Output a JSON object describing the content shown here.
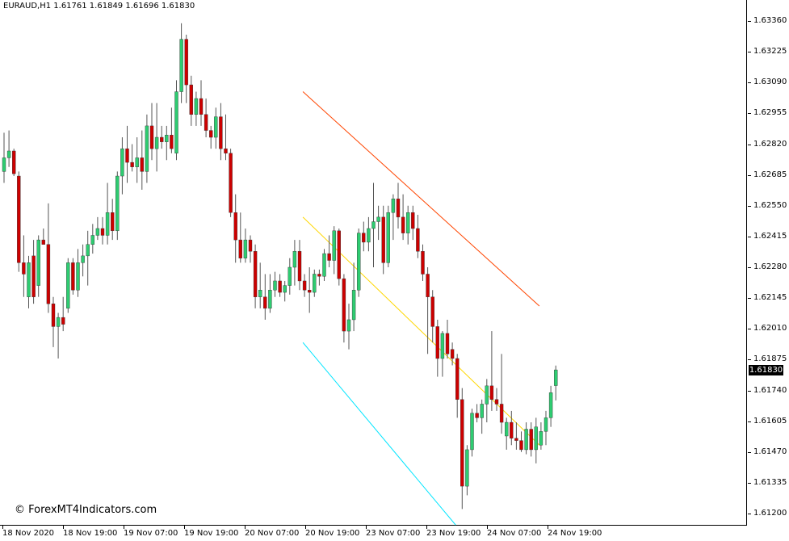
{
  "window": {
    "symbol_info": "EURAUD,H1  1.61761 1.61849 1.61696 1.61830",
    "current_price": "1.61830",
    "watermark": "© ForexMT4Indicators.com"
  },
  "price_axis": {
    "labels": [
      "1.63360",
      "1.63225",
      "1.63090",
      "1.62955",
      "1.62820",
      "1.62685",
      "1.62550",
      "1.62415",
      "1.62280",
      "1.62145",
      "1.62010",
      "1.61875",
      "1.61740",
      "1.61605",
      "1.61470",
      "1.61335",
      "1.61200"
    ]
  },
  "time_axis": {
    "labels": [
      "18 Nov 2020",
      "18 Nov 19:00",
      "19 Nov 07:00",
      "19 Nov 19:00",
      "20 Nov 07:00",
      "20 Nov 19:00",
      "23 Nov 07:00",
      "23 Nov 19:00",
      "24 Nov 07:00",
      "24 Nov 19:00"
    ]
  },
  "colors": {
    "bull": "#2ecc71",
    "bear": "#cc0000",
    "wick": "#555555",
    "upper_channel": "#ff4500",
    "middle_channel": "#ffd700",
    "lower_channel": "#00e5ff"
  },
  "chart_data": {
    "type": "candlestick",
    "symbol": "EURAUD",
    "timeframe": "H1",
    "ohlc_header": {
      "open": 1.61761,
      "high": 1.61849,
      "low": 1.61696,
      "close": 1.6183
    },
    "ylim": [
      1.612,
      1.6336
    ],
    "candles": [
      {
        "o": 1.627,
        "h": 1.6287,
        "l": 1.6265,
        "c": 1.6276
      },
      {
        "o": 1.6276,
        "h": 1.6288,
        "l": 1.6272,
        "c": 1.6279
      },
      {
        "o": 1.6279,
        "h": 1.628,
        "l": 1.6268,
        "c": 1.6269
      },
      {
        "o": 1.6268,
        "h": 1.627,
        "l": 1.6226,
        "c": 1.623
      },
      {
        "o": 1.623,
        "h": 1.6242,
        "l": 1.6215,
        "c": 1.6225
      },
      {
        "o": 1.6215,
        "h": 1.6233,
        "l": 1.621,
        "c": 1.623
      },
      {
        "o": 1.6233,
        "h": 1.624,
        "l": 1.6212,
        "c": 1.6215
      },
      {
        "o": 1.622,
        "h": 1.6242,
        "l": 1.6215,
        "c": 1.624
      },
      {
        "o": 1.624,
        "h": 1.6245,
        "l": 1.6239,
        "c": 1.6238
      },
      {
        "o": 1.6238,
        "h": 1.6256,
        "l": 1.6208,
        "c": 1.6212
      },
      {
        "o": 1.6212,
        "h": 1.6215,
        "l": 1.6193,
        "c": 1.6202
      },
      {
        "o": 1.6202,
        "h": 1.6208,
        "l": 1.6188,
        "c": 1.6206
      },
      {
        "o": 1.6206,
        "h": 1.6215,
        "l": 1.62,
        "c": 1.6203
      },
      {
        "o": 1.621,
        "h": 1.6232,
        "l": 1.6208,
        "c": 1.623
      },
      {
        "o": 1.623,
        "h": 1.6232,
        "l": 1.6216,
        "c": 1.6218
      },
      {
        "o": 1.6218,
        "h": 1.6236,
        "l": 1.6215,
        "c": 1.623
      },
      {
        "o": 1.623,
        "h": 1.6238,
        "l": 1.6224,
        "c": 1.6233
      },
      {
        "o": 1.6233,
        "h": 1.6244,
        "l": 1.622,
        "c": 1.6238
      },
      {
        "o": 1.6238,
        "h": 1.6247,
        "l": 1.6234,
        "c": 1.6242
      },
      {
        "o": 1.6242,
        "h": 1.625,
        "l": 1.624,
        "c": 1.6245
      },
      {
        "o": 1.6245,
        "h": 1.625,
        "l": 1.6238,
        "c": 1.6242
      },
      {
        "o": 1.6242,
        "h": 1.6265,
        "l": 1.6238,
        "c": 1.6252
      },
      {
        "o": 1.6252,
        "h": 1.6258,
        "l": 1.624,
        "c": 1.6244
      },
      {
        "o": 1.6244,
        "h": 1.627,
        "l": 1.624,
        "c": 1.6268
      },
      {
        "o": 1.6268,
        "h": 1.6285,
        "l": 1.626,
        "c": 1.628
      },
      {
        "o": 1.628,
        "h": 1.629,
        "l": 1.6265,
        "c": 1.6274
      },
      {
        "o": 1.6274,
        "h": 1.6282,
        "l": 1.627,
        "c": 1.6272
      },
      {
        "o": 1.6272,
        "h": 1.6285,
        "l": 1.6265,
        "c": 1.6276
      },
      {
        "o": 1.6276,
        "h": 1.6288,
        "l": 1.6262,
        "c": 1.627
      },
      {
        "o": 1.627,
        "h": 1.6295,
        "l": 1.6265,
        "c": 1.629
      },
      {
        "o": 1.629,
        "h": 1.63,
        "l": 1.6275,
        "c": 1.628
      },
      {
        "o": 1.628,
        "h": 1.63,
        "l": 1.627,
        "c": 1.6285
      },
      {
        "o": 1.6285,
        "h": 1.629,
        "l": 1.628,
        "c": 1.6283
      },
      {
        "o": 1.6283,
        "h": 1.629,
        "l": 1.6275,
        "c": 1.6286
      },
      {
        "o": 1.6286,
        "h": 1.6298,
        "l": 1.6278,
        "c": 1.628
      },
      {
        "o": 1.6278,
        "h": 1.631,
        "l": 1.6275,
        "c": 1.6305
      },
      {
        "o": 1.6305,
        "h": 1.6335,
        "l": 1.63,
        "c": 1.6328
      },
      {
        "o": 1.6328,
        "h": 1.633,
        "l": 1.63,
        "c": 1.6308
      },
      {
        "o": 1.6308,
        "h": 1.6312,
        "l": 1.629,
        "c": 1.6295
      },
      {
        "o": 1.6295,
        "h": 1.6305,
        "l": 1.629,
        "c": 1.6302
      },
      {
        "o": 1.6302,
        "h": 1.631,
        "l": 1.629,
        "c": 1.6295
      },
      {
        "o": 1.6295,
        "h": 1.6302,
        "l": 1.6285,
        "c": 1.6288
      },
      {
        "o": 1.6288,
        "h": 1.629,
        "l": 1.628,
        "c": 1.6285
      },
      {
        "o": 1.6285,
        "h": 1.6298,
        "l": 1.628,
        "c": 1.6294
      },
      {
        "o": 1.6294,
        "h": 1.63,
        "l": 1.6275,
        "c": 1.628
      },
      {
        "o": 1.628,
        "h": 1.6295,
        "l": 1.6275,
        "c": 1.6278
      },
      {
        "o": 1.6278,
        "h": 1.628,
        "l": 1.625,
        "c": 1.6252
      },
      {
        "o": 1.6252,
        "h": 1.626,
        "l": 1.623,
        "c": 1.624
      },
      {
        "o": 1.624,
        "h": 1.6252,
        "l": 1.623,
        "c": 1.6232
      },
      {
        "o": 1.6232,
        "h": 1.6245,
        "l": 1.623,
        "c": 1.624
      },
      {
        "o": 1.624,
        "h": 1.6242,
        "l": 1.623,
        "c": 1.6235
      },
      {
        "o": 1.6235,
        "h": 1.6238,
        "l": 1.621,
        "c": 1.6215
      },
      {
        "o": 1.6215,
        "h": 1.623,
        "l": 1.621,
        "c": 1.6218
      },
      {
        "o": 1.6215,
        "h": 1.6225,
        "l": 1.6205,
        "c": 1.621
      },
      {
        "o": 1.621,
        "h": 1.6225,
        "l": 1.6208,
        "c": 1.6218
      },
      {
        "o": 1.6218,
        "h": 1.6226,
        "l": 1.6215,
        "c": 1.6222
      },
      {
        "o": 1.6222,
        "h": 1.6225,
        "l": 1.6215,
        "c": 1.6217
      },
      {
        "o": 1.6217,
        "h": 1.6222,
        "l": 1.6213,
        "c": 1.622
      },
      {
        "o": 1.622,
        "h": 1.6232,
        "l": 1.6216,
        "c": 1.6228
      },
      {
        "o": 1.6228,
        "h": 1.624,
        "l": 1.622,
        "c": 1.6235
      },
      {
        "o": 1.6235,
        "h": 1.624,
        "l": 1.6218,
        "c": 1.6222
      },
      {
        "o": 1.6222,
        "h": 1.6225,
        "l": 1.6215,
        "c": 1.6218
      },
      {
        "o": 1.6218,
        "h": 1.6228,
        "l": 1.6208,
        "c": 1.6217
      },
      {
        "o": 1.6217,
        "h": 1.6227,
        "l": 1.6215,
        "c": 1.6225
      },
      {
        "o": 1.6225,
        "h": 1.6227,
        "l": 1.622,
        "c": 1.6224
      },
      {
        "o": 1.6224,
        "h": 1.6236,
        "l": 1.6222,
        "c": 1.6234
      },
      {
        "o": 1.6234,
        "h": 1.6242,
        "l": 1.6228,
        "c": 1.6231
      },
      {
        "o": 1.6231,
        "h": 1.6246,
        "l": 1.6225,
        "c": 1.6244
      },
      {
        "o": 1.6244,
        "h": 1.6245,
        "l": 1.622,
        "c": 1.6223
      },
      {
        "o": 1.6223,
        "h": 1.6225,
        "l": 1.6195,
        "c": 1.62
      },
      {
        "o": 1.62,
        "h": 1.6212,
        "l": 1.6192,
        "c": 1.6205
      },
      {
        "o": 1.6205,
        "h": 1.623,
        "l": 1.62,
        "c": 1.6218
      },
      {
        "o": 1.6218,
        "h": 1.6245,
        "l": 1.6215,
        "c": 1.6243
      },
      {
        "o": 1.6243,
        "h": 1.6248,
        "l": 1.6235,
        "c": 1.6239
      },
      {
        "o": 1.6239,
        "h": 1.625,
        "l": 1.6235,
        "c": 1.6245
      },
      {
        "o": 1.6245,
        "h": 1.6265,
        "l": 1.6228,
        "c": 1.6248
      },
      {
        "o": 1.6248,
        "h": 1.6255,
        "l": 1.624,
        "c": 1.625
      },
      {
        "o": 1.625,
        "h": 1.6255,
        "l": 1.6225,
        "c": 1.623
      },
      {
        "o": 1.623,
        "h": 1.6255,
        "l": 1.6228,
        "c": 1.6252
      },
      {
        "o": 1.6252,
        "h": 1.626,
        "l": 1.624,
        "c": 1.6258
      },
      {
        "o": 1.6258,
        "h": 1.6265,
        "l": 1.6245,
        "c": 1.625
      },
      {
        "o": 1.625,
        "h": 1.626,
        "l": 1.624,
        "c": 1.6243
      },
      {
        "o": 1.6243,
        "h": 1.6255,
        "l": 1.6238,
        "c": 1.6252
      },
      {
        "o": 1.6252,
        "h": 1.6255,
        "l": 1.624,
        "c": 1.6245
      },
      {
        "o": 1.6245,
        "h": 1.6251,
        "l": 1.6232,
        "c": 1.6235
      },
      {
        "o": 1.6235,
        "h": 1.6238,
        "l": 1.6222,
        "c": 1.6225
      },
      {
        "o": 1.6225,
        "h": 1.6228,
        "l": 1.619,
        "c": 1.6215
      },
      {
        "o": 1.6215,
        "h": 1.6218,
        "l": 1.6195,
        "c": 1.6202
      },
      {
        "o": 1.6202,
        "h": 1.6205,
        "l": 1.618,
        "c": 1.6188
      },
      {
        "o": 1.6188,
        "h": 1.62,
        "l": 1.618,
        "c": 1.6199
      },
      {
        "o": 1.6199,
        "h": 1.6205,
        "l": 1.6188,
        "c": 1.619
      },
      {
        "o": 1.6192,
        "h": 1.6195,
        "l": 1.6185,
        "c": 1.6188
      },
      {
        "o": 1.6188,
        "h": 1.619,
        "l": 1.6162,
        "c": 1.617
      },
      {
        "o": 1.617,
        "h": 1.6175,
        "l": 1.6122,
        "c": 1.6132
      },
      {
        "o": 1.6132,
        "h": 1.615,
        "l": 1.6128,
        "c": 1.6148
      },
      {
        "o": 1.6148,
        "h": 1.6166,
        "l": 1.6145,
        "c": 1.6164
      },
      {
        "o": 1.6164,
        "h": 1.6168,
        "l": 1.616,
        "c": 1.6162
      },
      {
        "o": 1.6162,
        "h": 1.617,
        "l": 1.6155,
        "c": 1.6168
      },
      {
        "o": 1.6168,
        "h": 1.6179,
        "l": 1.616,
        "c": 1.6176
      },
      {
        "o": 1.6176,
        "h": 1.62,
        "l": 1.6165,
        "c": 1.617
      },
      {
        "o": 1.617,
        "h": 1.6175,
        "l": 1.6165,
        "c": 1.6168
      },
      {
        "o": 1.6168,
        "h": 1.619,
        "l": 1.6155,
        "c": 1.616
      },
      {
        "o": 1.6154,
        "h": 1.6162,
        "l": 1.6148,
        "c": 1.616
      },
      {
        "o": 1.616,
        "h": 1.6165,
        "l": 1.615,
        "c": 1.6153
      },
      {
        "o": 1.6153,
        "h": 1.616,
        "l": 1.6148,
        "c": 1.6152
      },
      {
        "o": 1.6152,
        "h": 1.6156,
        "l": 1.6147,
        "c": 1.6148
      },
      {
        "o": 1.6148,
        "h": 1.616,
        "l": 1.6146,
        "c": 1.6157
      },
      {
        "o": 1.6157,
        "h": 1.616,
        "l": 1.6145,
        "c": 1.6148
      },
      {
        "o": 1.6148,
        "h": 1.6162,
        "l": 1.6142,
        "c": 1.6158
      },
      {
        "o": 1.615,
        "h": 1.616,
        "l": 1.6148,
        "c": 1.6156
      },
      {
        "o": 1.6156,
        "h": 1.6165,
        "l": 1.615,
        "c": 1.6162
      },
      {
        "o": 1.6162,
        "h": 1.6176,
        "l": 1.6158,
        "c": 1.6173
      },
      {
        "o": 1.61761,
        "h": 1.61849,
        "l": 1.61696,
        "c": 1.6183
      }
    ],
    "channel": {
      "upper": {
        "start_index": 61,
        "end_index": 109,
        "start": 1.6305,
        "end": 1.6211
      },
      "middle": {
        "start_index": 61,
        "end_index": 109,
        "start": 1.625,
        "end": 1.615
      },
      "lower": {
        "start_index": 61,
        "end_index": 92,
        "start": 1.6195,
        "end": 1.6115
      }
    }
  }
}
